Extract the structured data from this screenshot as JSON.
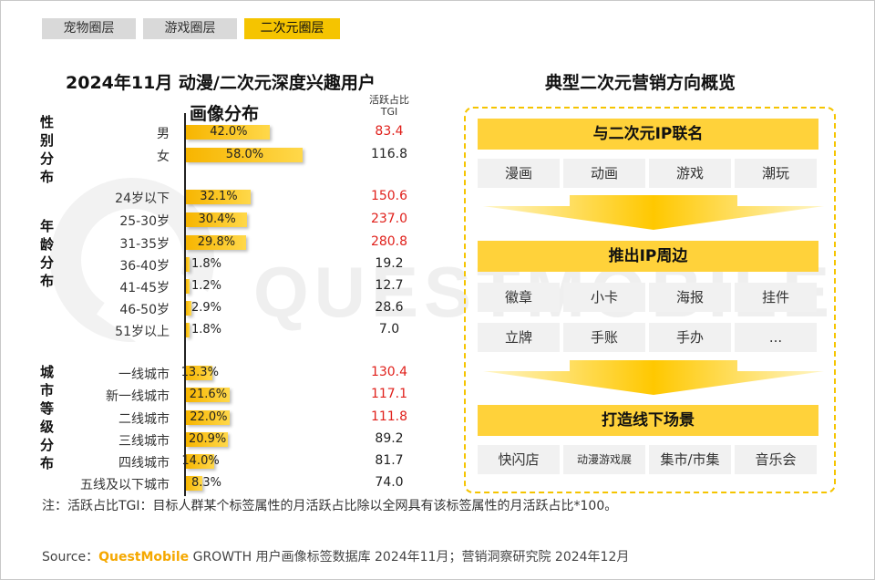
{
  "tabs": [
    {
      "label": "宠物圈层",
      "active": false
    },
    {
      "label": "游戏圈层",
      "active": false
    },
    {
      "label": "二次元圈层",
      "active": true
    }
  ],
  "watermark": "QUESTMOBILE",
  "left": {
    "title": "2024年11月 动漫/二次元深度兴趣用户",
    "subtitle": "画像分布",
    "tgi_header_line1": "活跃占比",
    "tgi_header_line2": "TGI",
    "groups": [
      "性别分布",
      "年龄分布",
      "城市等级分布"
    ]
  },
  "chart_data": {
    "type": "bar",
    "subtitle": "画像分布",
    "title": "2024年11月 动漫/二次元深度兴趣用户",
    "series": [
      {
        "name": "",
        "values": []
      },
      {
        "name": "活跃占比TGI",
        "values": []
      }
    ],
    "rows": [
      {
        "group": "性别分布",
        "category": "男",
        "pct": 42.0,
        "pct_label": "42.0%",
        "tgi": 83.4,
        "tgi_label": "83.4",
        "highlight": true
      },
      {
        "group": "性别分布",
        "category": "女",
        "pct": 58.0,
        "pct_label": "58.0%",
        "tgi": 116.8,
        "tgi_label": "116.8",
        "highlight": false
      },
      {
        "group": "年龄分布",
        "category": "24岁以下",
        "pct": 32.1,
        "pct_label": "32.1%",
        "tgi": 150.6,
        "tgi_label": "150.6",
        "highlight": true
      },
      {
        "group": "年龄分布",
        "category": "25-30岁",
        "pct": 30.4,
        "pct_label": "30.4%",
        "tgi": 237.0,
        "tgi_label": "237.0",
        "highlight": true
      },
      {
        "group": "年龄分布",
        "category": "31-35岁",
        "pct": 29.8,
        "pct_label": "29.8%",
        "tgi": 280.8,
        "tgi_label": "280.8",
        "highlight": true
      },
      {
        "group": "年龄分布",
        "category": "36-40岁",
        "pct": 1.8,
        "pct_label": "1.8%",
        "tgi": 19.2,
        "tgi_label": "19.2",
        "highlight": false
      },
      {
        "group": "年龄分布",
        "category": "41-45岁",
        "pct": 1.2,
        "pct_label": "1.2%",
        "tgi": 12.7,
        "tgi_label": "12.7",
        "highlight": false
      },
      {
        "group": "年龄分布",
        "category": "46-50岁",
        "pct": 2.9,
        "pct_label": "2.9%",
        "tgi": 28.6,
        "tgi_label": "28.6",
        "highlight": false
      },
      {
        "group": "年龄分布",
        "category": "51岁以上",
        "pct": 1.8,
        "pct_label": "1.8%",
        "tgi": 7.0,
        "tgi_label": "7.0",
        "highlight": false
      },
      {
        "group": "城市等级分布",
        "category": "一线城市",
        "pct": 13.3,
        "pct_label": "13.3%",
        "tgi": 130.4,
        "tgi_label": "130.4",
        "highlight": true
      },
      {
        "group": "城市等级分布",
        "category": "新一线城市",
        "pct": 21.6,
        "pct_label": "21.6%",
        "tgi": 117.1,
        "tgi_label": "117.1",
        "highlight": true
      },
      {
        "group": "城市等级分布",
        "category": "二线城市",
        "pct": 22.0,
        "pct_label": "22.0%",
        "tgi": 111.8,
        "tgi_label": "111.8",
        "highlight": true
      },
      {
        "group": "城市等级分布",
        "category": "三线城市",
        "pct": 20.9,
        "pct_label": "20.9%",
        "tgi": 89.2,
        "tgi_label": "89.2",
        "highlight": false
      },
      {
        "group": "城市等级分布",
        "category": "四线城市",
        "pct": 14.0,
        "pct_label": "14.0%",
        "tgi": 81.7,
        "tgi_label": "81.7",
        "highlight": false
      },
      {
        "group": "城市等级分布",
        "category": "五线及以下城市",
        "pct": 8.3,
        "pct_label": "8.3%",
        "tgi": 74.0,
        "tgi_label": "74.0",
        "highlight": false
      }
    ],
    "colors": {
      "bar": "#f7b500",
      "bar_light": "#ffd84a",
      "tgi_high": "#e0201b",
      "tgi_normal": "#222222"
    }
  },
  "right": {
    "title": "典型二次元营销方向概览",
    "sections": [
      {
        "heading": "与二次元IP联名",
        "items": [
          "漫画",
          "动画",
          "游戏",
          "潮玩"
        ]
      },
      {
        "heading": "推出IP周边",
        "items": [
          "徽章",
          "小卡",
          "海报",
          "挂件",
          "立牌",
          "手账",
          "手办",
          "..."
        ]
      },
      {
        "heading": "打造线下场景",
        "items": [
          "快闪店",
          "动漫游戏展",
          "集市/市集",
          "音乐会"
        ]
      }
    ],
    "colors": {
      "accent": "#f5c400",
      "chip": "#f1f1f1"
    }
  },
  "note": "注：活跃占比TGI：目标人群某个标签属性的月活跃占比除以全网具有该标签属性的月活跃占比*100。",
  "source": {
    "prefix": "Source：",
    "brand": "QuestMobile",
    "text": " GROWTH 用户画像标签数据库 2024年11月；营销洞察研究院 2024年12月"
  }
}
